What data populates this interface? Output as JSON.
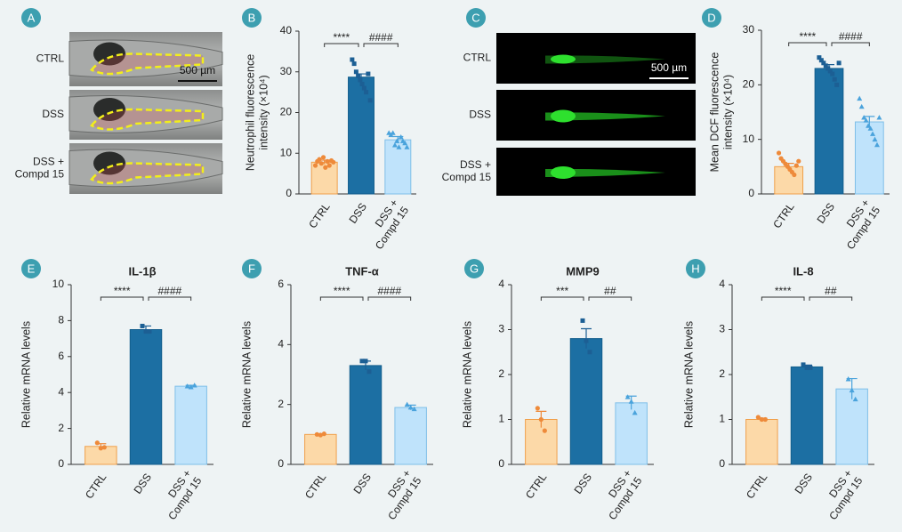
{
  "image_panels": [
    {
      "letter": "A",
      "row_labels": [
        "CTRL",
        "DSS",
        "DSS +\nCompd 15"
      ],
      "scale_bar": "500 µm"
    },
    {
      "letter": "C",
      "row_labels": [
        "CTRL",
        "DSS",
        "DSS +\nCompd 15"
      ],
      "scale_bar": "500 µm"
    }
  ],
  "chart_data": [
    {
      "type": "bar",
      "letter": "B",
      "ylabel": "Neutrophil fluorescence\nintensity (×10⁴)",
      "categories": [
        "CTRL",
        "DSS",
        "DSS +\nCompd 15"
      ],
      "values": [
        7.8,
        28.7,
        13.3
      ],
      "errors": [
        0.5,
        0.8,
        0.8
      ],
      "points": [
        [
          7,
          8,
          8.5,
          7.5,
          9,
          6.5,
          8,
          7,
          8.2,
          7.8
        ],
        [
          33,
          32,
          30,
          29,
          28,
          27,
          26,
          25,
          29.5,
          23
        ],
        [
          15,
          14.5,
          15,
          12,
          13,
          11.5,
          14,
          13,
          12.5,
          11.5
        ]
      ],
      "colors": [
        "#fcd9a8",
        "#1c6fa3",
        "#bfe3fb"
      ],
      "edge_colors": [
        "#f0a04b",
        "#135e8c",
        "#7fbfe8"
      ],
      "point_colors": [
        "#ee8a3a",
        "#1c5f94",
        "#4aa3dc"
      ],
      "markers": [
        "circle",
        "square",
        "triangle"
      ],
      "significance": [
        "****",
        "####"
      ],
      "ylim": [
        0,
        40
      ],
      "yticks": [
        0,
        10,
        20,
        30,
        40
      ]
    },
    {
      "type": "bar",
      "letter": "D",
      "ylabel": "Mean DCF fluorescence\nintensity (×10⁴)",
      "categories": [
        "CTRL",
        "DSS",
        "DSS +\nCompd 15"
      ],
      "values": [
        5,
        23,
        13.2
      ],
      "errors": [
        0.6,
        0.7,
        1
      ],
      "points": [
        [
          7.5,
          6.5,
          6,
          5.5,
          5,
          4.5,
          4,
          3.5,
          5.2,
          6
        ],
        [
          25,
          24.5,
          24,
          23.5,
          23,
          22.5,
          22,
          21,
          20,
          24
        ],
        [
          17.5,
          16,
          14,
          13.5,
          12.5,
          12,
          11,
          10,
          9,
          14
        ]
      ],
      "colors": [
        "#fcd9a8",
        "#1c6fa3",
        "#bfe3fb"
      ],
      "edge_colors": [
        "#f0a04b",
        "#135e8c",
        "#7fbfe8"
      ],
      "point_colors": [
        "#ee8a3a",
        "#1c5f94",
        "#4aa3dc"
      ],
      "markers": [
        "circle",
        "square",
        "triangle"
      ],
      "significance": [
        "****",
        "####"
      ],
      "ylim": [
        0,
        30
      ],
      "yticks": [
        0,
        10,
        20,
        30
      ]
    },
    {
      "type": "bar",
      "letter": "E",
      "title": "IL-1β",
      "ylabel": "Relative mRNA levels",
      "categories": [
        "CTRL",
        "DSS",
        "DSS +\nCompd 15"
      ],
      "values": [
        1.0,
        7.5,
        4.35
      ],
      "errors": [
        0.15,
        0.2,
        0.05
      ],
      "points": [
        [
          1.2,
          0.9,
          0.95
        ],
        [
          7.7,
          7.4,
          7.4
        ],
        [
          4.35,
          4.3,
          4.4
        ]
      ],
      "colors": [
        "#fcd9a8",
        "#1c6fa3",
        "#bfe3fb"
      ],
      "edge_colors": [
        "#f0a04b",
        "#135e8c",
        "#7fbfe8"
      ],
      "point_colors": [
        "#ee8a3a",
        "#1c5f94",
        "#4aa3dc"
      ],
      "markers": [
        "circle",
        "square",
        "triangle"
      ],
      "significance": [
        "****",
        "####"
      ],
      "ylim": [
        0,
        10
      ],
      "yticks": [
        0,
        2,
        4,
        6,
        8,
        10
      ]
    },
    {
      "type": "bar",
      "letter": "F",
      "title": "TNF-α",
      "ylabel": "Relative mRNA levels",
      "categories": [
        "CTRL",
        "DSS",
        "DSS +\nCompd 15"
      ],
      "values": [
        1.0,
        3.3,
        1.9
      ],
      "errors": [
        0.02,
        0.15,
        0.08
      ],
      "points": [
        [
          1.0,
          0.98,
          1.02
        ],
        [
          3.45,
          3.45,
          3.1
        ],
        [
          2.0,
          1.9,
          1.85
        ]
      ],
      "colors": [
        "#fcd9a8",
        "#1c6fa3",
        "#bfe3fb"
      ],
      "edge_colors": [
        "#f0a04b",
        "#135e8c",
        "#7fbfe8"
      ],
      "point_colors": [
        "#ee8a3a",
        "#1c5f94",
        "#4aa3dc"
      ],
      "markers": [
        "circle",
        "square",
        "triangle"
      ],
      "significance": [
        "****",
        "####"
      ],
      "ylim": [
        0,
        6
      ],
      "yticks": [
        0,
        2,
        4,
        6
      ]
    },
    {
      "type": "bar",
      "letter": "G",
      "title": "MMP9",
      "ylabel": "Relative mRNA levels",
      "categories": [
        "CTRL",
        "DSS",
        "DSS +\nCompd 15"
      ],
      "values": [
        1.0,
        2.8,
        1.37
      ],
      "errors": [
        0.18,
        0.22,
        0.15
      ],
      "points": [
        [
          1.25,
          1.0,
          0.75
        ],
        [
          3.2,
          2.75,
          2.5
        ],
        [
          1.5,
          1.4,
          1.15
        ]
      ],
      "colors": [
        "#fcd9a8",
        "#1c6fa3",
        "#bfe3fb"
      ],
      "edge_colors": [
        "#f0a04b",
        "#135e8c",
        "#7fbfe8"
      ],
      "point_colors": [
        "#ee8a3a",
        "#1c5f94",
        "#4aa3dc"
      ],
      "markers": [
        "circle",
        "square",
        "triangle"
      ],
      "significance": [
        "***",
        "##"
      ],
      "ylim": [
        0,
        4
      ],
      "yticks": [
        0,
        1,
        2,
        3,
        4
      ]
    },
    {
      "type": "bar",
      "letter": "H",
      "title": "IL-8",
      "ylabel": "Relative mRNA levels",
      "categories": [
        "CTRL",
        "DSS",
        "DSS +\nCompd 15"
      ],
      "values": [
        1.0,
        2.17,
        1.68
      ],
      "errors": [
        0.03,
        0.04,
        0.23
      ],
      "points": [
        [
          1.05,
          1.0,
          1.0
        ],
        [
          2.22,
          2.15,
          2.15
        ],
        [
          1.9,
          1.65,
          1.45
        ]
      ],
      "colors": [
        "#fcd9a8",
        "#1c6fa3",
        "#bfe3fb"
      ],
      "edge_colors": [
        "#f0a04b",
        "#135e8c",
        "#7fbfe8"
      ],
      "point_colors": [
        "#ee8a3a",
        "#1c5f94",
        "#4aa3dc"
      ],
      "markers": [
        "circle",
        "square",
        "triangle"
      ],
      "significance": [
        "****",
        "##"
      ],
      "ylim": [
        0,
        4
      ],
      "yticks": [
        0,
        1,
        2,
        3,
        4
      ]
    }
  ]
}
